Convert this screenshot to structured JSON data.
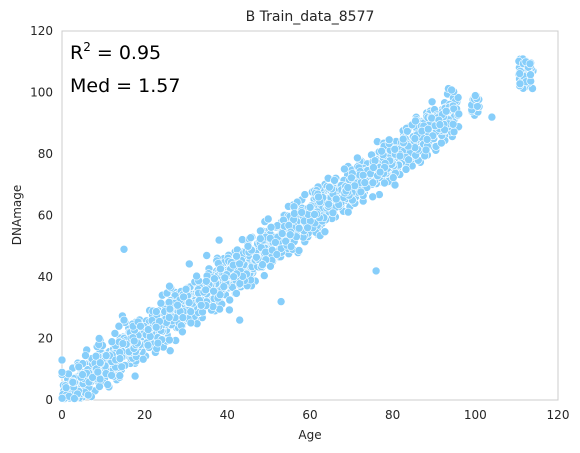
{
  "chart_data": {
    "type": "scatter",
    "title": "B Train_data_8577",
    "xlabel": "Age",
    "ylabel": "DNAmage",
    "xlim": [
      0,
      120
    ],
    "ylim": [
      0,
      120
    ],
    "xticks": [
      "0",
      "20",
      "40",
      "60",
      "80",
      "100",
      "120"
    ],
    "yticks": [
      "0",
      "20",
      "40",
      "60",
      "80",
      "100",
      "120"
    ],
    "grid": false,
    "point_color": "#87CEFA",
    "annotations": {
      "r2_prefix": "R",
      "r2_sup": "2",
      "r2_value": " = 0.95",
      "med": "Med = 1.57"
    },
    "trend": {
      "slope": 0.97,
      "intercept": 1.2,
      "spread": 3.5,
      "x_range": [
        0,
        114
      ]
    },
    "outliers": [
      [
        15,
        49
      ],
      [
        76,
        42
      ],
      [
        53,
        32
      ],
      [
        43,
        26
      ],
      [
        15,
        26
      ],
      [
        9,
        20
      ],
      [
        26,
        37
      ],
      [
        38,
        52
      ],
      [
        35,
        47
      ],
      [
        96,
        93
      ],
      [
        100,
        99
      ],
      [
        104,
        92
      ],
      [
        0,
        13
      ],
      [
        0,
        9
      ],
      [
        1,
        4
      ],
      [
        3,
        0.5
      ],
      [
        45,
        50
      ],
      [
        48,
        55
      ],
      [
        58,
        61
      ],
      [
        30,
        36
      ],
      [
        19,
        24
      ],
      [
        12,
        8
      ]
    ],
    "clusters": [
      {
        "x": [
          110.5,
          114
        ],
        "y": [
          101,
          111
        ],
        "n": 60
      },
      {
        "x": [
          99,
          101
        ],
        "y": [
          92,
          99
        ],
        "n": 25
      }
    ]
  }
}
